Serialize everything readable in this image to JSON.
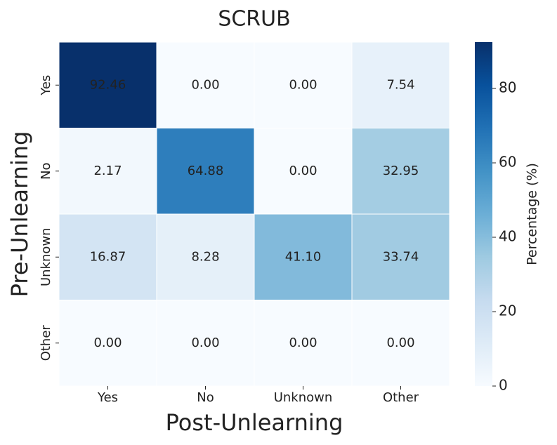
{
  "chart_data": {
    "type": "heatmap",
    "title": "SCRUB",
    "xlabel": "Post-Unlearning",
    "ylabel": "Pre-Unlearning",
    "x_categories": [
      "Yes",
      "No",
      "Unknown",
      "Other"
    ],
    "y_categories": [
      "Yes",
      "No",
      "Unknown",
      "Other"
    ],
    "values": [
      [
        92.46,
        0,
        0,
        7.54
      ],
      [
        2.17,
        64.88,
        0,
        32.95
      ],
      [
        16.87,
        8.28,
        41.1,
        33.74
      ],
      [
        0,
        0,
        0,
        0
      ]
    ],
    "value_labels": [
      [
        "92.46",
        "0.00",
        "0.00",
        "7.54"
      ],
      [
        "2.17",
        "64.88",
        "0.00",
        "32.95"
      ],
      [
        "16.87",
        "8.28",
        "41.10",
        "33.74"
      ],
      [
        "0.00",
        "0.00",
        "0.00",
        "0.00"
      ]
    ],
    "colorbar_label": "Percentage (%)",
    "colorbar_lim": [
      0,
      92.46
    ],
    "colorbar_ticks": [
      0,
      20,
      40,
      60,
      80
    ],
    "colormap": [
      "#f7fbff",
      "#deebf7",
      "#c6dbef",
      "#9ecae1",
      "#6baed6",
      "#4292c6",
      "#2171b5",
      "#08519c",
      "#08306b"
    ]
  }
}
